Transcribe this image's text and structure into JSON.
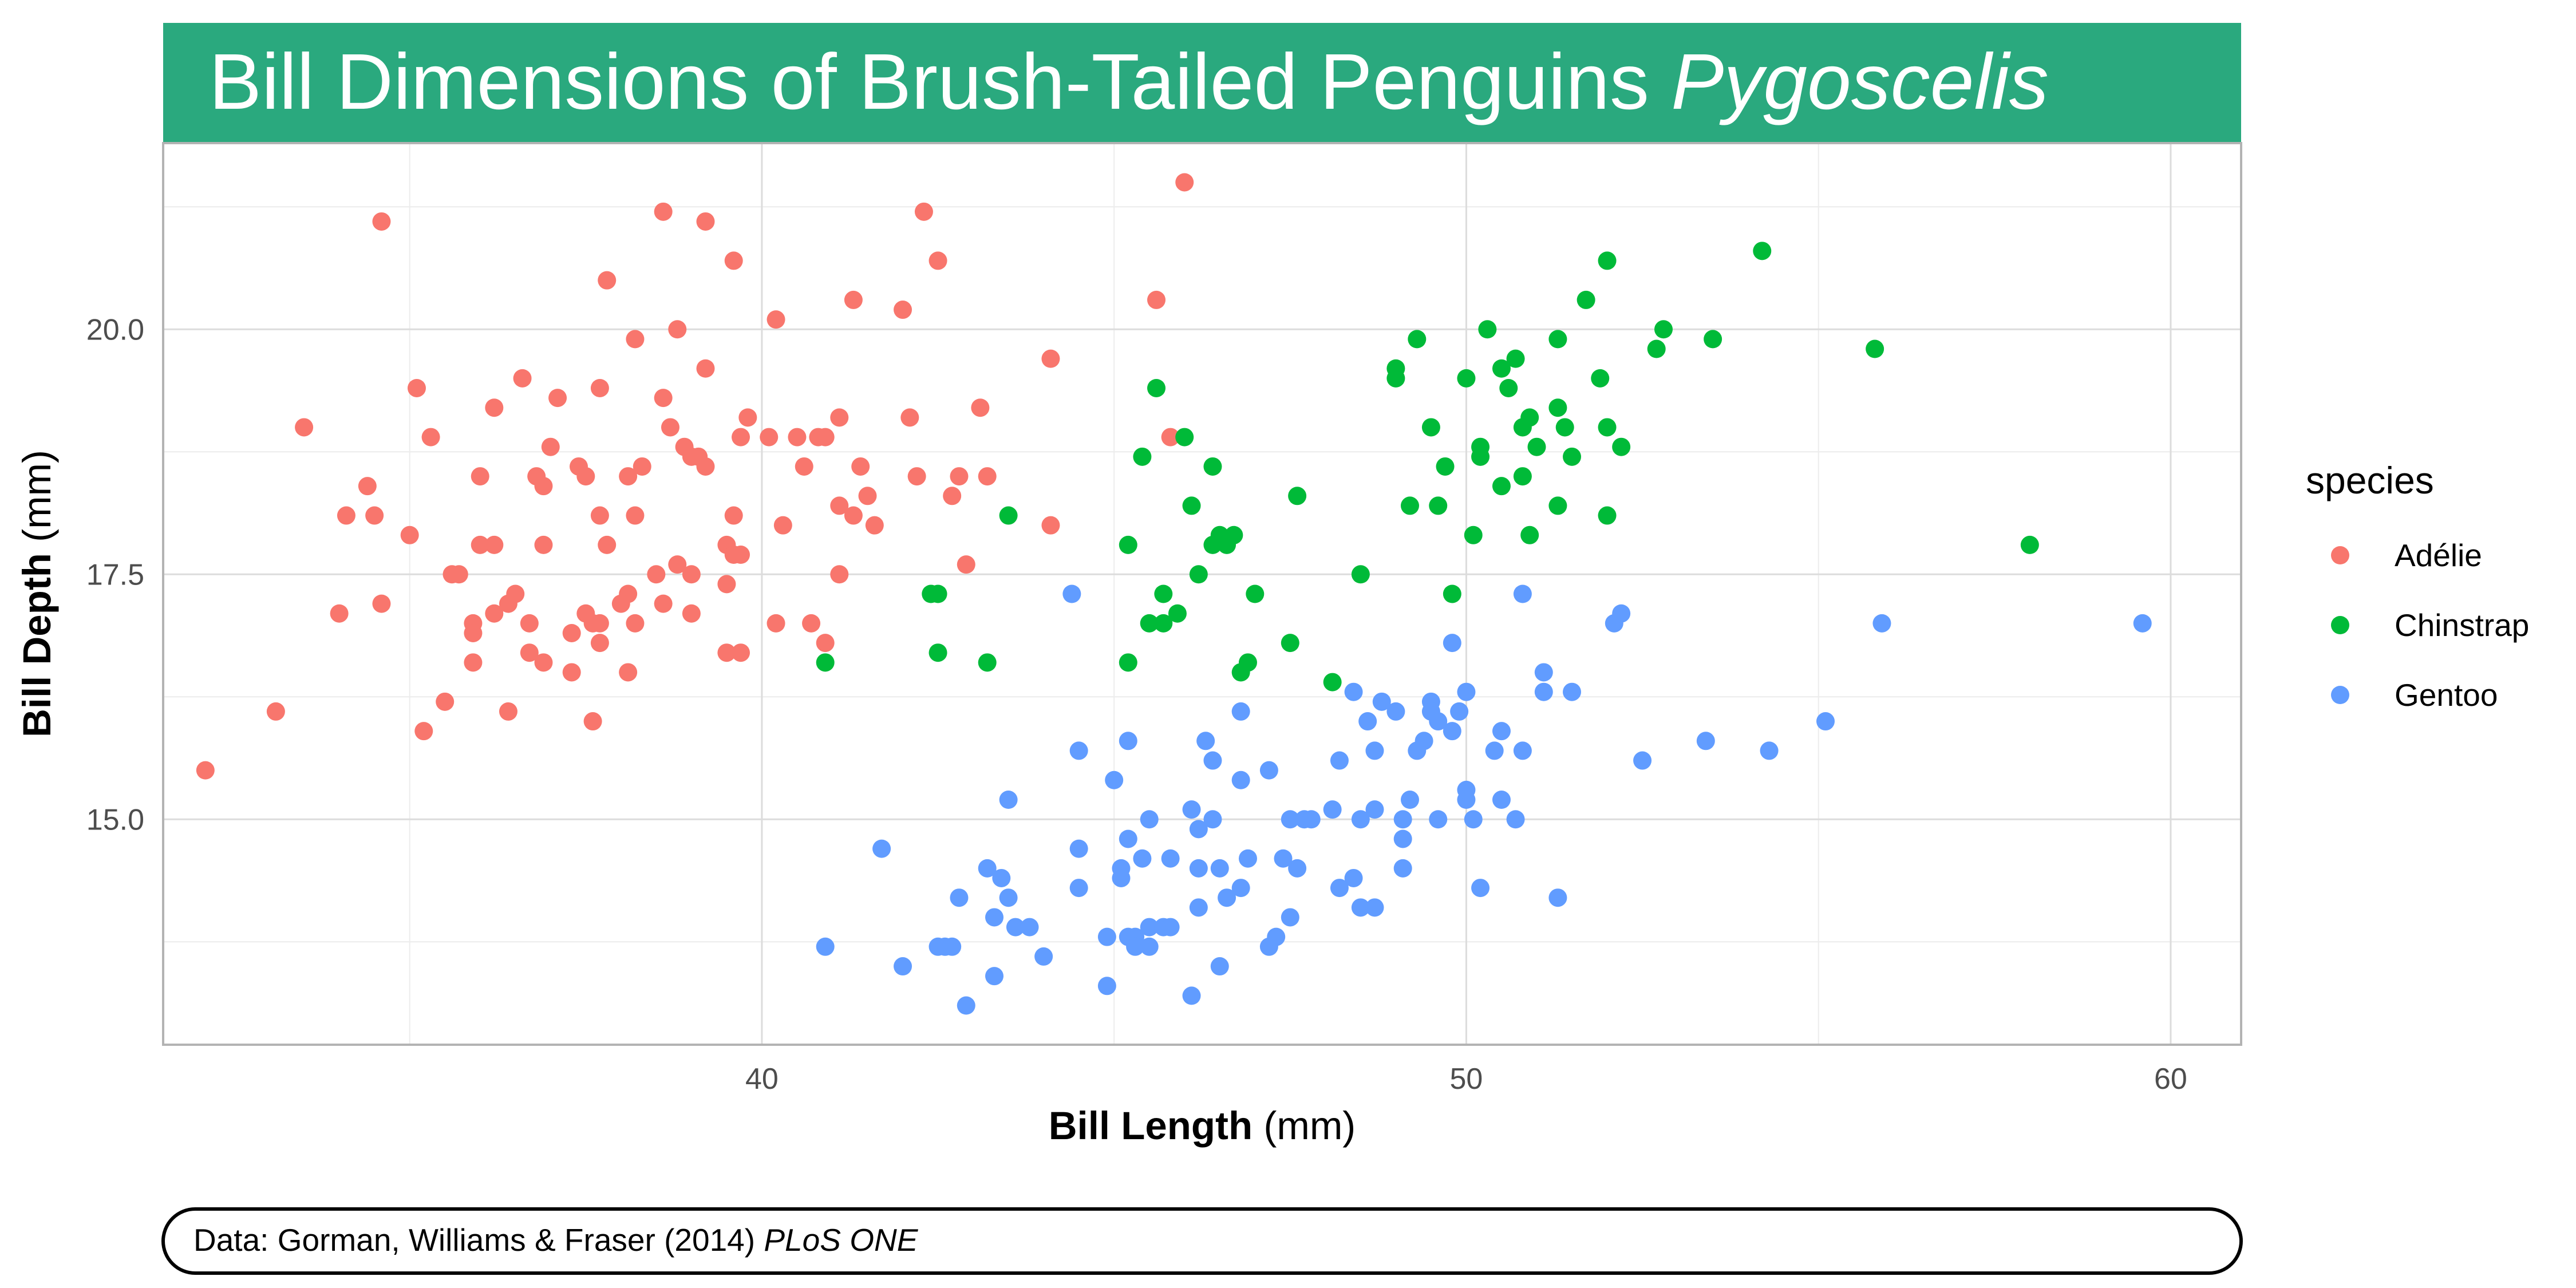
{
  "chart_data": {
    "type": "scatter",
    "title": {
      "main": "Bill Dimensions of Brush-Tailed Penguins",
      "italic": "Pygoscelis"
    },
    "xlabel": {
      "bold": "Bill Length",
      "unit": "(mm)"
    },
    "ylabel": {
      "bold": "Bill Depth",
      "unit": "(mm)"
    },
    "xlim": [
      31.5,
      61.0
    ],
    "ylim": [
      12.7,
      21.9
    ],
    "x_ticks": [
      40,
      50,
      60
    ],
    "x_tick_labels": [
      "40",
      "50",
      "60"
    ],
    "y_ticks": [
      15.0,
      17.5,
      20.0
    ],
    "y_tick_labels": [
      "15.0",
      "17.5",
      "20.0"
    ],
    "grid": true,
    "legend": {
      "title": "species",
      "placement": "right"
    },
    "caption": {
      "text": "Data: Gorman, Williams & Fraser (2014)",
      "italic": "PLoS ONE"
    },
    "series": [
      {
        "name": "Adélie",
        "color": "#F8766D",
        "points": [
          [
            32.1,
            15.5
          ],
          [
            33.1,
            16.1
          ],
          [
            33.5,
            19.0
          ],
          [
            34.0,
            17.1
          ],
          [
            34.1,
            18.1
          ],
          [
            34.4,
            18.4
          ],
          [
            34.5,
            18.1
          ],
          [
            34.6,
            21.1
          ],
          [
            34.6,
            17.2
          ],
          [
            35.0,
            17.9
          ],
          [
            35.1,
            19.4
          ],
          [
            35.2,
            15.9
          ],
          [
            35.3,
            18.9
          ],
          [
            35.5,
            16.2
          ],
          [
            35.6,
            17.5
          ],
          [
            35.7,
            17.5
          ],
          [
            35.9,
            16.6
          ],
          [
            35.9,
            17.0
          ],
          [
            35.9,
            16.9
          ],
          [
            36.0,
            17.8
          ],
          [
            36.0,
            18.5
          ],
          [
            36.2,
            17.1
          ],
          [
            36.2,
            19.2
          ],
          [
            36.2,
            17.8
          ],
          [
            36.4,
            16.1
          ],
          [
            36.4,
            17.2
          ],
          [
            36.5,
            17.3
          ],
          [
            36.6,
            19.5
          ],
          [
            36.7,
            17.0
          ],
          [
            36.7,
            16.7
          ],
          [
            36.8,
            18.5
          ],
          [
            36.9,
            16.6
          ],
          [
            36.9,
            17.8
          ],
          [
            36.9,
            18.4
          ],
          [
            37.0,
            18.8
          ],
          [
            37.1,
            19.3
          ],
          [
            37.3,
            16.5
          ],
          [
            37.3,
            16.9
          ],
          [
            37.4,
            18.6
          ],
          [
            37.5,
            17.1
          ],
          [
            37.5,
            18.5
          ],
          [
            37.6,
            17.0
          ],
          [
            37.7,
            17.0
          ],
          [
            37.7,
            19.4
          ],
          [
            37.7,
            18.1
          ],
          [
            37.7,
            16.8
          ],
          [
            37.8,
            17.8
          ],
          [
            37.8,
            20.5
          ],
          [
            38.1,
            17.3
          ],
          [
            38.1,
            18.5
          ],
          [
            38.1,
            16.5
          ],
          [
            38.2,
            19.9
          ],
          [
            38.2,
            18.1
          ],
          [
            38.2,
            17.0
          ],
          [
            38.3,
            18.6
          ],
          [
            38.5,
            17.5
          ],
          [
            38.6,
            17.2
          ],
          [
            38.6,
            19.3
          ],
          [
            38.6,
            21.2
          ],
          [
            38.7,
            19.0
          ],
          [
            38.8,
            17.6
          ],
          [
            38.8,
            20.0
          ],
          [
            38.9,
            18.8
          ],
          [
            39.0,
            18.7
          ],
          [
            39.0,
            17.1
          ],
          [
            39.0,
            17.5
          ],
          [
            39.1,
            18.7
          ],
          [
            39.2,
            18.6
          ],
          [
            39.2,
            19.6
          ],
          [
            39.2,
            21.1
          ],
          [
            39.5,
            17.4
          ],
          [
            39.5,
            16.7
          ],
          [
            39.5,
            17.8
          ],
          [
            39.6,
            18.1
          ],
          [
            39.6,
            20.7
          ],
          [
            39.6,
            17.7
          ],
          [
            39.7,
            18.9
          ],
          [
            39.7,
            17.7
          ],
          [
            39.7,
            16.7
          ],
          [
            39.8,
            19.1
          ],
          [
            40.1,
            18.9
          ],
          [
            40.2,
            17.0
          ],
          [
            40.2,
            20.1
          ],
          [
            40.3,
            18.0
          ],
          [
            40.5,
            18.9
          ],
          [
            40.6,
            18.6
          ],
          [
            40.7,
            17.0
          ],
          [
            40.8,
            18.9
          ],
          [
            40.9,
            18.9
          ],
          [
            40.9,
            16.8
          ],
          [
            41.1,
            17.5
          ],
          [
            41.1,
            18.2
          ],
          [
            41.1,
            19.1
          ],
          [
            41.3,
            20.3
          ],
          [
            41.3,
            18.1
          ],
          [
            41.4,
            18.6
          ],
          [
            41.5,
            18.3
          ],
          [
            41.6,
            18.0
          ],
          [
            42.0,
            20.2
          ],
          [
            42.1,
            19.1
          ],
          [
            42.2,
            18.5
          ],
          [
            42.3,
            21.2
          ],
          [
            42.5,
            20.7
          ],
          [
            42.7,
            18.3
          ],
          [
            42.8,
            18.5
          ],
          [
            42.9,
            17.6
          ],
          [
            43.1,
            19.2
          ],
          [
            43.2,
            18.5
          ],
          [
            44.1,
            19.7
          ],
          [
            44.1,
            18.0
          ],
          [
            45.8,
            18.9
          ],
          [
            46.0,
            21.5
          ],
          [
            45.6,
            20.3
          ],
          [
            37.6,
            16.0
          ],
          [
            38.0,
            17.2
          ]
        ]
      },
      {
        "name": "Chinstrap",
        "color": "#00BA38",
        "points": [
          [
            40.9,
            16.6
          ],
          [
            42.4,
            17.3
          ],
          [
            42.5,
            17.3
          ],
          [
            42.5,
            16.7
          ],
          [
            43.2,
            16.6
          ],
          [
            43.5,
            18.1
          ],
          [
            45.2,
            16.6
          ],
          [
            45.2,
            17.8
          ],
          [
            45.4,
            18.7
          ],
          [
            45.5,
            17.0
          ],
          [
            45.6,
            19.4
          ],
          [
            45.7,
            17.3
          ],
          [
            45.7,
            17.0
          ],
          [
            45.9,
            17.1
          ],
          [
            46.0,
            18.9
          ],
          [
            46.1,
            18.2
          ],
          [
            46.2,
            17.5
          ],
          [
            46.4,
            18.6
          ],
          [
            46.4,
            17.8
          ],
          [
            46.5,
            17.9
          ],
          [
            46.6,
            17.8
          ],
          [
            46.7,
            17.9
          ],
          [
            46.8,
            16.5
          ],
          [
            46.9,
            16.6
          ],
          [
            47.0,
            17.3
          ],
          [
            47.5,
            16.8
          ],
          [
            47.6,
            18.3
          ],
          [
            48.1,
            16.4
          ],
          [
            48.5,
            17.5
          ],
          [
            49.0,
            19.5
          ],
          [
            49.0,
            19.6
          ],
          [
            49.2,
            18.2
          ],
          [
            49.3,
            19.9
          ],
          [
            49.5,
            19.0
          ],
          [
            49.6,
            18.2
          ],
          [
            49.7,
            18.6
          ],
          [
            49.8,
            17.3
          ],
          [
            50.0,
            19.5
          ],
          [
            50.1,
            17.9
          ],
          [
            50.2,
            18.8
          ],
          [
            50.2,
            18.7
          ],
          [
            50.3,
            20.0
          ],
          [
            50.5,
            18.4
          ],
          [
            50.5,
            19.6
          ],
          [
            50.6,
            19.4
          ],
          [
            50.7,
            19.7
          ],
          [
            50.8,
            18.5
          ],
          [
            50.8,
            19.0
          ],
          [
            50.9,
            17.9
          ],
          [
            50.9,
            19.1
          ],
          [
            51.0,
            18.8
          ],
          [
            51.3,
            18.2
          ],
          [
            51.3,
            19.2
          ],
          [
            51.3,
            19.9
          ],
          [
            51.4,
            19.0
          ],
          [
            51.5,
            18.7
          ],
          [
            51.7,
            20.3
          ],
          [
            51.9,
            19.5
          ],
          [
            52.0,
            18.1
          ],
          [
            52.0,
            19.0
          ],
          [
            52.0,
            20.7
          ],
          [
            52.2,
            18.8
          ],
          [
            52.7,
            19.8
          ],
          [
            52.8,
            20.0
          ],
          [
            53.5,
            19.9
          ],
          [
            54.2,
            20.8
          ],
          [
            55.8,
            19.8
          ],
          [
            58.0,
            17.8
          ]
        ]
      },
      {
        "name": "Gentoo",
        "color": "#619CFF",
        "points": [
          [
            40.9,
            13.7
          ],
          [
            41.7,
            14.7
          ],
          [
            42.0,
            13.5
          ],
          [
            42.5,
            13.7
          ],
          [
            42.6,
            13.7
          ],
          [
            42.7,
            13.7
          ],
          [
            42.8,
            14.2
          ],
          [
            42.9,
            13.1
          ],
          [
            43.2,
            14.5
          ],
          [
            43.3,
            14.0
          ],
          [
            43.3,
            13.4
          ],
          [
            43.4,
            14.4
          ],
          [
            43.5,
            14.2
          ],
          [
            43.5,
            15.2
          ],
          [
            43.6,
            13.9
          ],
          [
            43.8,
            13.9
          ],
          [
            44.0,
            13.6
          ],
          [
            44.4,
            17.3
          ],
          [
            44.5,
            15.7
          ],
          [
            44.5,
            14.3
          ],
          [
            44.5,
            14.7
          ],
          [
            44.9,
            13.3
          ],
          [
            44.9,
            13.8
          ],
          [
            45.0,
            15.4
          ],
          [
            45.1,
            14.5
          ],
          [
            45.1,
            14.4
          ],
          [
            45.2,
            13.8
          ],
          [
            45.2,
            14.8
          ],
          [
            45.2,
            15.8
          ],
          [
            45.3,
            13.8
          ],
          [
            45.3,
            13.7
          ],
          [
            45.4,
            14.6
          ],
          [
            45.5,
            13.7
          ],
          [
            45.5,
            13.9
          ],
          [
            45.5,
            15.0
          ],
          [
            45.7,
            13.9
          ],
          [
            45.8,
            14.6
          ],
          [
            45.8,
            13.9
          ],
          [
            46.1,
            13.2
          ],
          [
            46.1,
            15.1
          ],
          [
            46.2,
            14.5
          ],
          [
            46.2,
            14.1
          ],
          [
            46.2,
            14.9
          ],
          [
            46.3,
            15.8
          ],
          [
            46.4,
            15.6
          ],
          [
            46.4,
            15.0
          ],
          [
            46.5,
            14.5
          ],
          [
            46.5,
            13.5
          ],
          [
            46.6,
            14.2
          ],
          [
            46.8,
            14.3
          ],
          [
            46.8,
            15.4
          ],
          [
            46.8,
            16.1
          ],
          [
            46.9,
            14.6
          ],
          [
            47.2,
            13.7
          ],
          [
            47.2,
            15.5
          ],
          [
            47.3,
            13.8
          ],
          [
            47.4,
            14.6
          ],
          [
            47.5,
            14.0
          ],
          [
            47.5,
            15.0
          ],
          [
            47.6,
            14.5
          ],
          [
            47.7,
            15.0
          ],
          [
            47.8,
            15.0
          ],
          [
            48.1,
            15.1
          ],
          [
            48.2,
            14.3
          ],
          [
            48.2,
            15.6
          ],
          [
            48.4,
            14.4
          ],
          [
            48.4,
            16.3
          ],
          [
            48.5,
            14.1
          ],
          [
            48.5,
            15.0
          ],
          [
            48.6,
            16.0
          ],
          [
            48.7,
            14.1
          ],
          [
            48.7,
            15.1
          ],
          [
            48.7,
            15.7
          ],
          [
            48.8,
            16.2
          ],
          [
            49.0,
            16.1
          ],
          [
            49.1,
            14.5
          ],
          [
            49.1,
            14.8
          ],
          [
            49.1,
            15.0
          ],
          [
            49.2,
            15.2
          ],
          [
            49.3,
            15.7
          ],
          [
            49.4,
            15.8
          ],
          [
            49.5,
            16.2
          ],
          [
            49.5,
            16.1
          ],
          [
            49.6,
            15.0
          ],
          [
            49.6,
            16.0
          ],
          [
            49.8,
            15.9
          ],
          [
            49.8,
            16.8
          ],
          [
            49.9,
            16.1
          ],
          [
            50.0,
            15.2
          ],
          [
            50.0,
            15.3
          ],
          [
            50.0,
            16.3
          ],
          [
            50.1,
            15.0
          ],
          [
            50.2,
            14.3
          ],
          [
            50.4,
            15.7
          ],
          [
            50.5,
            15.2
          ],
          [
            50.5,
            15.9
          ],
          [
            50.7,
            15.0
          ],
          [
            50.8,
            15.7
          ],
          [
            50.8,
            17.3
          ],
          [
            51.1,
            16.3
          ],
          [
            51.1,
            16.5
          ],
          [
            51.3,
            14.2
          ],
          [
            51.5,
            16.3
          ],
          [
            52.1,
            17.0
          ],
          [
            52.2,
            17.1
          ],
          [
            52.5,
            15.6
          ],
          [
            53.4,
            15.8
          ],
          [
            54.3,
            15.7
          ],
          [
            55.1,
            16.0
          ],
          [
            55.9,
            17.0
          ],
          [
            59.6,
            17.0
          ]
        ]
      }
    ]
  }
}
